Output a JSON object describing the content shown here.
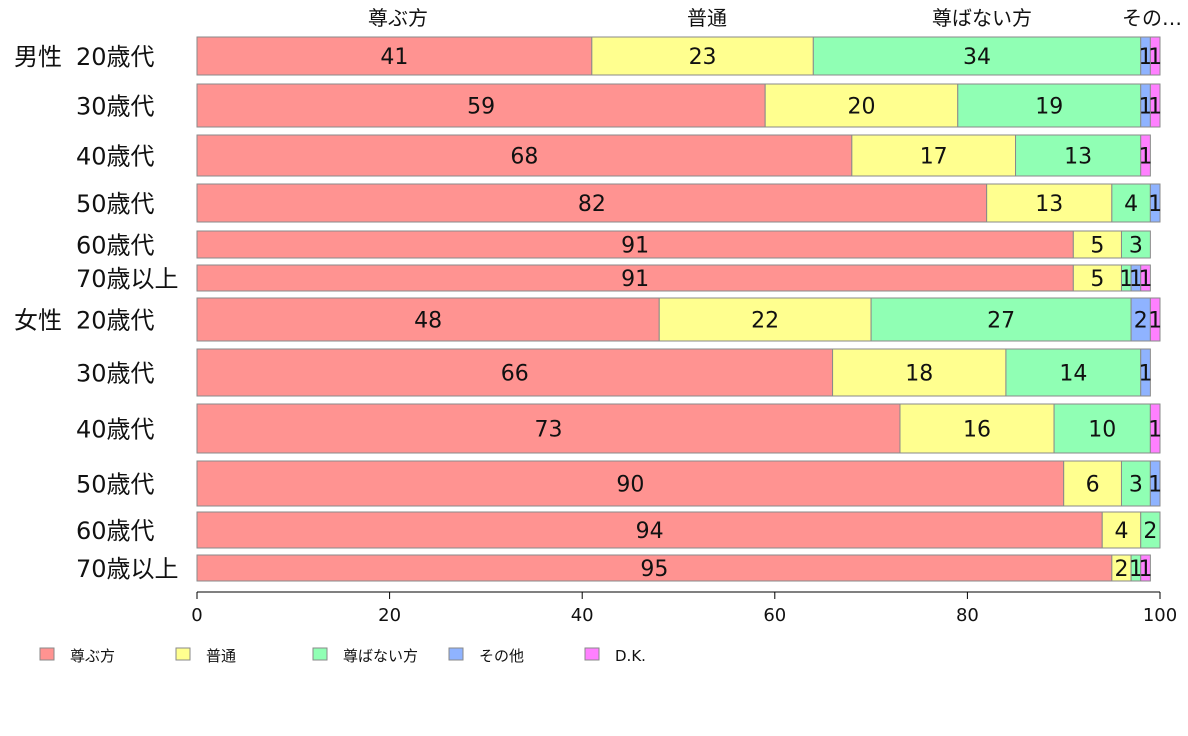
{
  "chart_data": {
    "type": "bar",
    "orientation": "horizontal",
    "stacked": true,
    "xlim": [
      0,
      100
    ],
    "x_ticks": [
      "0",
      "20",
      "40",
      "60",
      "80",
      "100"
    ],
    "series_header_labels": [
      "尊ぶ方",
      "普通",
      "尊ばない方",
      "その…"
    ],
    "rows": [
      {
        "group": "男性",
        "label": "20歳代",
        "values": [
          41,
          23,
          34,
          1,
          1
        ]
      },
      {
        "group": "",
        "label": "30歳代",
        "values": [
          59,
          20,
          19,
          1,
          1
        ]
      },
      {
        "group": "",
        "label": "40歳代",
        "values": [
          68,
          17,
          13,
          0,
          1
        ]
      },
      {
        "group": "",
        "label": "50歳代",
        "values": [
          82,
          13,
          4,
          1,
          0
        ]
      },
      {
        "group": "",
        "label": "60歳代",
        "values": [
          91,
          5,
          3,
          0,
          0
        ]
      },
      {
        "group": "",
        "label": "70歳以上",
        "values": [
          91,
          5,
          1,
          1,
          1
        ]
      },
      {
        "group": "女性",
        "label": "20歳代",
        "values": [
          48,
          22,
          27,
          2,
          1
        ]
      },
      {
        "group": "",
        "label": "30歳代",
        "values": [
          66,
          18,
          14,
          1,
          0
        ]
      },
      {
        "group": "",
        "label": "40歳代",
        "values": [
          73,
          16,
          10,
          0,
          1
        ]
      },
      {
        "group": "",
        "label": "50歳代",
        "values": [
          90,
          6,
          3,
          1,
          0
        ]
      },
      {
        "group": "",
        "label": "60歳代",
        "values": [
          94,
          4,
          2,
          0,
          0
        ]
      },
      {
        "group": "",
        "label": "70歳以上",
        "values": [
          95,
          2,
          1,
          0,
          1
        ]
      }
    ],
    "series": [
      {
        "name": "尊ぶ方",
        "color": "#ff9391"
      },
      {
        "name": "普通",
        "color": "#ffff8f"
      },
      {
        "name": "尊ばない方",
        "color": "#90ffb4"
      },
      {
        "name": "その他",
        "color": "#8fb3ff"
      },
      {
        "name": "D.K.",
        "color": "#ff80ff"
      }
    ],
    "legend_position": "bottom-left",
    "grid": false
  }
}
